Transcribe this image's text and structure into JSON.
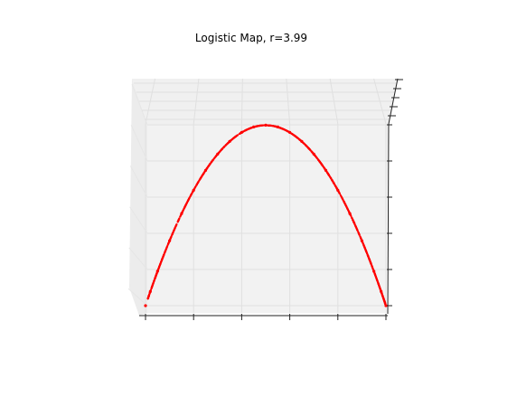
{
  "chart_data": {
    "type": "scatter",
    "projection": "3d",
    "title": "Logistic Map, r=3.99",
    "r": 3.99,
    "xlabel": "",
    "ylabel": "",
    "zlabel": "",
    "xlim": [
      0,
      1
    ],
    "zlim": [
      0,
      1
    ],
    "x_ticks": [
      0,
      0.2,
      0.4,
      0.6,
      0.8,
      1.0
    ],
    "z_ticks": [
      0,
      0.2,
      0.4,
      0.6,
      0.8,
      1.0
    ],
    "tick_labels_visible": false,
    "grid": true,
    "marker_color": "#ff0000",
    "series": [
      {
        "x": [
          0.0,
          0.02,
          0.05,
          0.1,
          0.15,
          0.2,
          0.25,
          0.3,
          0.35,
          0.4,
          0.45,
          0.5,
          0.55,
          0.6,
          0.65,
          0.7,
          0.75,
          0.8,
          0.85,
          0.9,
          0.95,
          0.98,
          1.0
        ],
        "z": [
          0.0,
          0.078,
          0.19,
          0.359,
          0.509,
          0.638,
          0.748,
          0.838,
          0.908,
          0.958,
          0.988,
          0.998,
          0.988,
          0.958,
          0.908,
          0.838,
          0.748,
          0.638,
          0.509,
          0.359,
          0.19,
          0.078,
          0.0
        ]
      }
    ]
  }
}
